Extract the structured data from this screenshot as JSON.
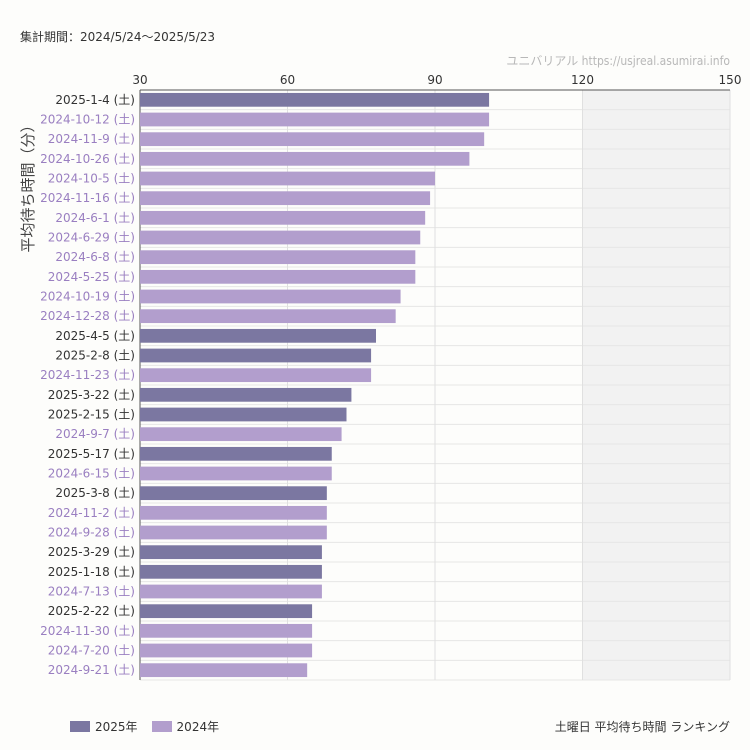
{
  "period_label": "集計期間：2024/5/24〜2025/5/23",
  "watermark": "ユニバリアル  https://usjreal.asumirai.info",
  "caption": "土曜日 平均待ち時間 ランキング",
  "colors": {
    "2025": "#7b77a1",
    "2024": "#b29ecd"
  },
  "chart_data": {
    "type": "bar",
    "orientation": "horizontal",
    "ylabel": "平均待ち時間（分）",
    "xlim": [
      30,
      150
    ],
    "xticks": [
      30,
      60,
      90,
      120,
      150
    ],
    "shaded_region": [
      120,
      150
    ],
    "legend": [
      {
        "name": "2025年",
        "color": "#7b77a1"
      },
      {
        "name": "2024年",
        "color": "#b29ecd"
      }
    ],
    "categories": [
      "2025-1-4 (土)",
      "2024-10-12 (土)",
      "2024-11-9 (土)",
      "2024-10-26 (土)",
      "2024-10-5 (土)",
      "2024-11-16 (土)",
      "2024-6-1 (土)",
      "2024-6-29 (土)",
      "2024-6-8 (土)",
      "2024-5-25 (土)",
      "2024-10-19 (土)",
      "2024-12-28 (土)",
      "2025-4-5 (土)",
      "2025-2-8 (土)",
      "2024-11-23 (土)",
      "2025-3-22 (土)",
      "2025-2-15 (土)",
      "2024-9-7 (土)",
      "2025-5-17 (土)",
      "2024-6-15 (土)",
      "2025-3-8 (土)",
      "2024-11-2 (土)",
      "2024-9-28 (土)",
      "2025-3-29 (土)",
      "2025-1-18 (土)",
      "2024-7-13 (土)",
      "2025-2-22 (土)",
      "2024-11-30 (土)",
      "2024-7-20 (土)",
      "2024-9-21 (土)"
    ],
    "values": [
      101,
      101,
      100,
      97,
      90,
      89,
      88,
      87,
      86,
      86,
      83,
      82,
      78,
      77,
      77,
      73,
      72,
      71,
      69,
      69,
      68,
      68,
      68,
      67,
      67,
      67,
      65,
      65,
      65,
      64
    ],
    "years": [
      "2025",
      "2024",
      "2024",
      "2024",
      "2024",
      "2024",
      "2024",
      "2024",
      "2024",
      "2024",
      "2024",
      "2024",
      "2025",
      "2025",
      "2024",
      "2025",
      "2025",
      "2024",
      "2025",
      "2024",
      "2025",
      "2024",
      "2024",
      "2025",
      "2025",
      "2024",
      "2025",
      "2024",
      "2024",
      "2024"
    ]
  }
}
